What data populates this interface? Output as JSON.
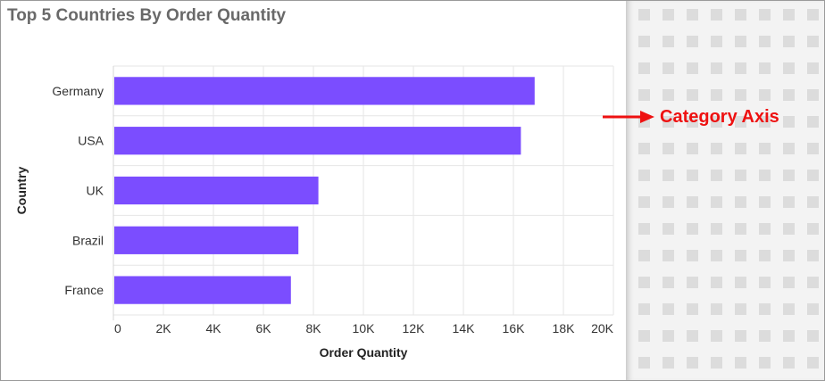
{
  "widget": {
    "title": "Top 5 Countries By Order Quantity"
  },
  "chart_data": {
    "type": "bar",
    "orientation": "horizontal",
    "categories": [
      "Germany",
      "USA",
      "UK",
      "Brazil",
      "France"
    ],
    "series": [
      {
        "values": [
          16850,
          16300,
          8200,
          7400,
          7100
        ]
      }
    ],
    "xlabel": "Order Quantity",
    "ylabel": "Country",
    "xlim": [
      0,
      20000
    ],
    "x_ticks": [
      "0",
      "2K",
      "4K",
      "6K",
      "8K",
      "10K",
      "12K",
      "14K",
      "16K",
      "18K",
      "20K"
    ],
    "grid": true,
    "bar_color": "#7b4dff"
  },
  "annotation": {
    "label": "Category Axis",
    "arrow_icon": "right-arrow-icon",
    "color": "#ee1111"
  }
}
